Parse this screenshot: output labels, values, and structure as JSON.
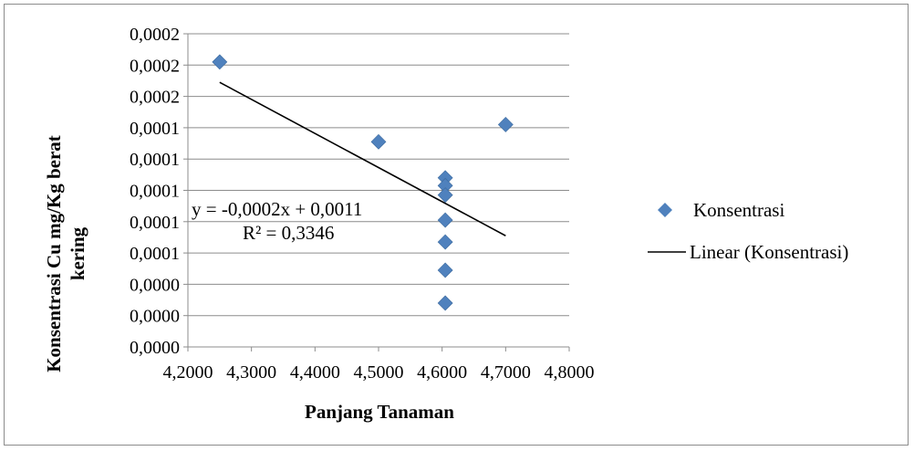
{
  "chart_data": {
    "type": "scatter",
    "xlabel": "Panjang Tanaman",
    "ylabel_lines": [
      "Konsentrasi Cu mg/Kg berat",
      "kering"
    ],
    "x_tick_labels": [
      "4,2000",
      "4,3000",
      "4,4000",
      "4,5000",
      "4,6000",
      "4,7000",
      "4,8000"
    ],
    "y_tick_labels": [
      "0,0000",
      "0,0000",
      "0,0000",
      "0,0001",
      "0,0001",
      "0,0001",
      "0,0001",
      "0,0001",
      "0,0002",
      "0,0002",
      "0,0002"
    ],
    "xlim": [
      4.2,
      4.8
    ],
    "ylim": [
      0,
      0.0002
    ],
    "grid": "horizontal",
    "legend_position": "right",
    "series": [
      {
        "name": "Konsentrasi",
        "marker": "diamond",
        "color": "#4f81bd",
        "points": [
          {
            "x": 4.25,
            "y": 0.000182
          },
          {
            "x": 4.5,
            "y": 0.000131
          },
          {
            "x": 4.7,
            "y": 0.000142
          },
          {
            "x": 4.605,
            "y": 0.000108
          },
          {
            "x": 4.605,
            "y": 0.000103
          },
          {
            "x": 4.605,
            "y": 9.7e-05
          },
          {
            "x": 4.605,
            "y": 8.1e-05
          },
          {
            "x": 4.605,
            "y": 6.7e-05
          },
          {
            "x": 4.605,
            "y": 4.9e-05
          },
          {
            "x": 4.605,
            "y": 2.8e-05
          }
        ]
      }
    ],
    "trendline": {
      "name": "Linear (Konsentrasi)",
      "color": "#000000",
      "x_start": 4.25,
      "y_start": 0.000169,
      "x_end": 4.7,
      "y_end": 7.1e-05,
      "equation": "y = -0,0002x + 0,0011",
      "r_squared": "R² = 0,3346"
    }
  }
}
